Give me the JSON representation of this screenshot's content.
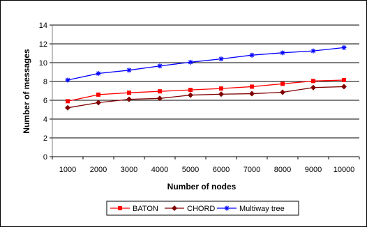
{
  "chart_data": {
    "type": "line",
    "title": "",
    "xlabel": "Number of nodes",
    "ylabel": "Number of messages",
    "categories": [
      "1000",
      "2000",
      "3000",
      "4000",
      "5000",
      "6000",
      "7000",
      "8000",
      "9000",
      "10000"
    ],
    "ylim": [
      0,
      14
    ],
    "yticks": [
      0,
      2,
      4,
      6,
      8,
      10,
      12,
      14
    ],
    "grid": "horizontal",
    "legend_position": "bottom",
    "series": [
      {
        "name": "BATON",
        "color": "#ff0000",
        "marker": "square",
        "values": [
          5.9,
          6.6,
          6.8,
          6.95,
          7.1,
          7.25,
          7.45,
          7.75,
          8.05,
          8.15
        ]
      },
      {
        "name": "CHORD",
        "color": "#800000",
        "marker": "diamond",
        "values": [
          5.2,
          5.75,
          6.1,
          6.2,
          6.55,
          6.65,
          6.7,
          6.85,
          7.35,
          7.45
        ]
      },
      {
        "name": "Multiway tree",
        "color": "#0000ff",
        "marker": "star",
        "values": [
          8.15,
          8.85,
          9.2,
          9.65,
          10.05,
          10.4,
          10.8,
          11.05,
          11.25,
          11.6
        ]
      }
    ]
  }
}
